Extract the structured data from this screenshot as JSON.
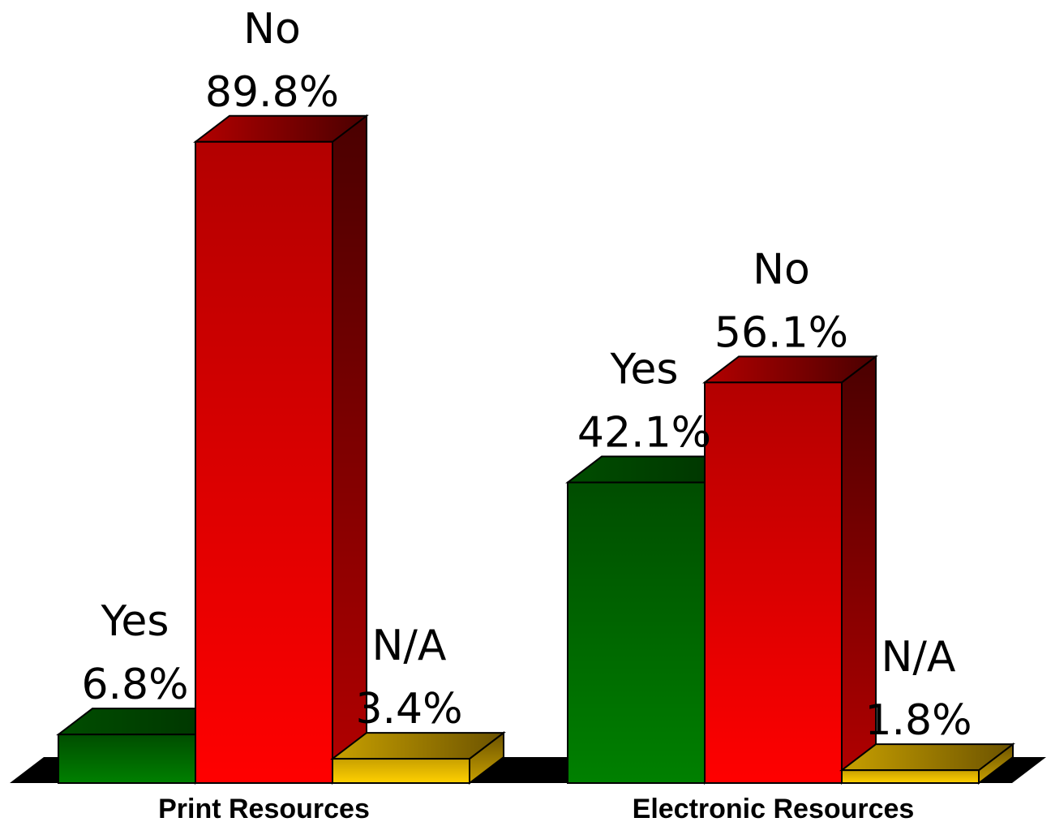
{
  "chart_data": {
    "type": "bar",
    "categories": [
      "Print Resources",
      "Electronic Resources"
    ],
    "series": [
      {
        "name": "Yes",
        "values": [
          6.8,
          42.1
        ],
        "labels": [
          "6.8%",
          "42.1%"
        ],
        "color": "#008000",
        "dark": "#004d00",
        "side": "#003300"
      },
      {
        "name": "No",
        "values": [
          89.8,
          56.1
        ],
        "labels": [
          "89.8%",
          "56.1%"
        ],
        "color": "#ff0000",
        "dark": "#b30000",
        "side": "#4a0000"
      },
      {
        "name": "N/A",
        "values": [
          3.4,
          1.8
        ],
        "labels": [
          "3.4%",
          "1.8%"
        ],
        "color": "#ffd000",
        "dark": "#c8a000",
        "side": "#6b5200"
      }
    ],
    "ylim": [
      0,
      100
    ],
    "three_d": true,
    "grid": false,
    "legend": "none"
  }
}
